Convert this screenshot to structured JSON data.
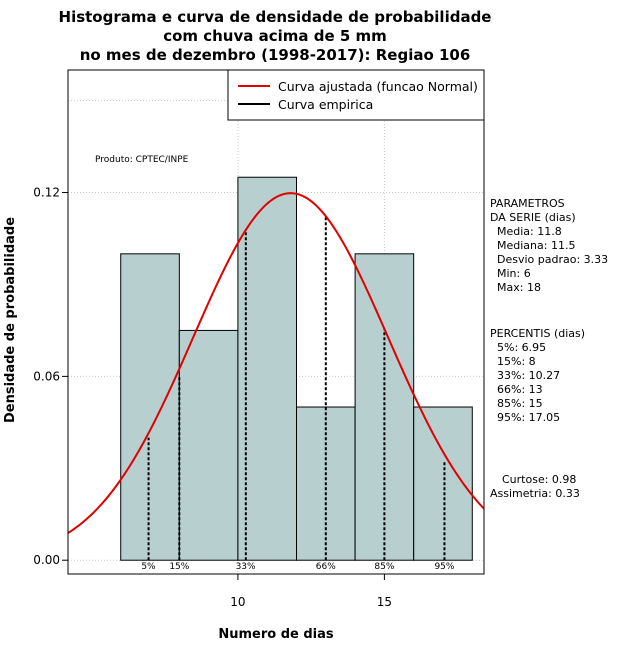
{
  "chart_data": {
    "type": "histogram",
    "title_lines": [
      "Histograma e curva de densidade de probabilidade",
      "com chuva acima de 5 mm",
      "no mes de dezembro (1998-2017): Regiao 106"
    ],
    "xlabel": "Numero de dias",
    "ylabel": "Densidade de probabilidade",
    "xlim": [
      4.2,
      18.4
    ],
    "ylim": [
      -0.0045,
      0.16
    ],
    "x_ticks": [
      10,
      15
    ],
    "y_ticks": [
      0.0,
      0.06,
      0.12
    ],
    "y_tick_labels": [
      "0.00",
      "0.06",
      "0.12"
    ],
    "bars": [
      {
        "left": 6,
        "right": 8,
        "density": 0.1
      },
      {
        "left": 8,
        "right": 10,
        "density": 0.075
      },
      {
        "left": 10,
        "right": 12,
        "density": 0.125
      },
      {
        "left": 12,
        "right": 14,
        "density": 0.05
      },
      {
        "left": 14,
        "right": 16,
        "density": 0.1
      },
      {
        "left": 16,
        "right": 18,
        "density": 0.05
      }
    ],
    "grid_x": [
      10,
      15
    ],
    "grid_y": [
      0.0,
      0.06,
      0.12,
      0.15
    ],
    "normal_fit": {
      "mean": 11.8,
      "sd": 3.33
    },
    "percentile_marks": [
      {
        "label": "5%",
        "value": 6.95
      },
      {
        "label": "15%",
        "value": 8
      },
      {
        "label": "33%",
        "value": 10.27
      },
      {
        "label": "66%",
        "value": 13
      },
      {
        "label": "85%",
        "value": 15
      },
      {
        "label": "95%",
        "value": 17.05
      }
    ],
    "legend": [
      {
        "label": "Curva ajustada (funcao Normal)",
        "color": "#e00000"
      },
      {
        "label": "Curva empirica",
        "color": "#000000"
      }
    ],
    "annotation": "Produto: CPTEC/INPE",
    "colors": {
      "bar_fill": "#b8cfcf",
      "curve": "#e00000",
      "grid": "#c8c8c8"
    }
  },
  "stats_panel": {
    "param_title_1": "PARAMETROS",
    "param_title_2": "DA SERIE (dias)",
    "params": [
      "Media: 11.8",
      "Mediana: 11.5",
      "Desvio padrao: 3.33",
      "Min: 6",
      "Max: 18"
    ],
    "percentis_title": "PERCENTIS (dias)",
    "percentis": [
      "5%: 6.95",
      "15%: 8",
      "33%: 10.27",
      "66%: 13",
      "85%: 15",
      "95%: 17.05"
    ],
    "curtose": "Curtose: 0.98",
    "assimetria": "Assimetria: 0.33"
  }
}
